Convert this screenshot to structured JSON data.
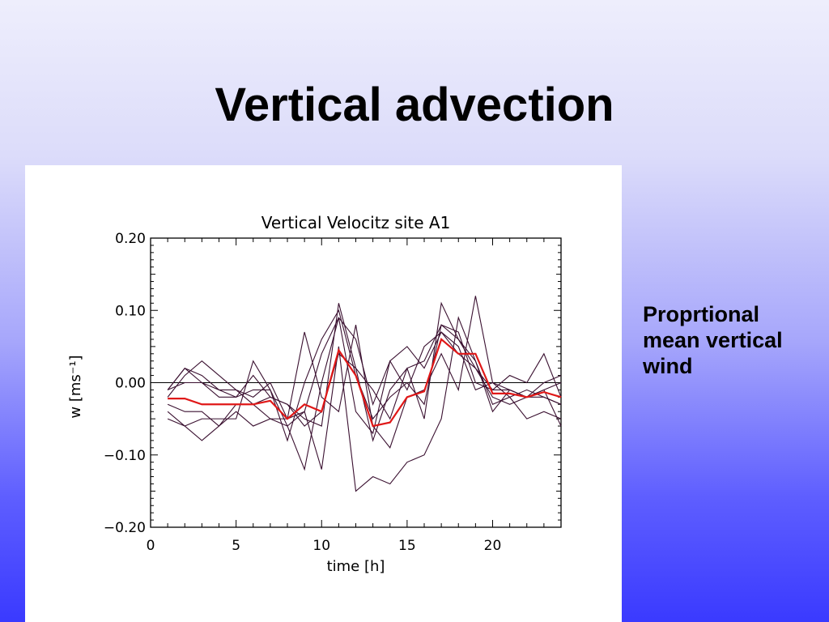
{
  "slide": {
    "title": "Vertical advection",
    "note_lines": [
      "Proprtional",
      "mean vertical",
      "wind"
    ]
  },
  "chart_data": {
    "type": "line",
    "title": "Vertical Velocitz site A1",
    "xlabel": "time [h]",
    "ylabel": "w [ms⁻¹]",
    "xlim": [
      0,
      24
    ],
    "ylim": [
      -0.2,
      0.2
    ],
    "xticks": [
      0,
      5,
      10,
      15,
      20
    ],
    "yticks": [
      0.2,
      0.1,
      0.0,
      -0.1,
      -0.2
    ],
    "ytick_labels": [
      "0.20",
      "0.10",
      "0.00",
      "−0.10",
      "−0.20"
    ],
    "zero_line": 0,
    "colors": {
      "members": "#3a1030",
      "mean": "#e01818"
    },
    "x": [
      1,
      2,
      3,
      4,
      5,
      6,
      7,
      8,
      9,
      10,
      11,
      12,
      13,
      14,
      15,
      16,
      17,
      18,
      19,
      20,
      21,
      22,
      23,
      24
    ],
    "series": [
      {
        "values": [
          -0.01,
          0.02,
          0.01,
          -0.01,
          -0.02,
          0.01,
          -0.02,
          -0.03,
          -0.05,
          -0.06,
          0.11,
          0.02,
          -0.08,
          -0.01,
          0.02,
          -0.05,
          0.11,
          0.06,
          0.03,
          -0.04,
          -0.01,
          -0.02,
          -0.01,
          -0.06
        ]
      },
      {
        "values": [
          -0.04,
          -0.06,
          -0.08,
          -0.06,
          -0.04,
          -0.06,
          -0.05,
          -0.06,
          -0.12,
          0.0,
          0.09,
          -0.04,
          -0.07,
          0.03,
          0.05,
          0.02,
          0.07,
          0.05,
          -0.01,
          0.0,
          -0.02,
          -0.01,
          -0.02,
          -0.03
        ]
      },
      {
        "values": [
          -0.02,
          0.01,
          0.03,
          0.01,
          -0.01,
          -0.03,
          -0.05,
          -0.05,
          0.07,
          -0.02,
          -0.04,
          0.08,
          -0.06,
          -0.09,
          -0.02,
          -0.01,
          0.04,
          -0.01,
          0.12,
          0.0,
          -0.01,
          -0.02,
          0.0,
          0.01
        ]
      },
      {
        "values": [
          -0.01,
          0.02,
          0.0,
          -0.02,
          -0.02,
          -0.01,
          -0.01,
          -0.08,
          0.0,
          0.06,
          0.1,
          0.01,
          -0.05,
          -0.02,
          0.0,
          -0.03,
          0.08,
          0.07,
          0.0,
          -0.01,
          0.01,
          0.0,
          0.04,
          -0.02
        ]
      },
      {
        "values": [
          -0.05,
          -0.06,
          -0.05,
          -0.05,
          -0.05,
          0.03,
          -0.01,
          -0.06,
          -0.04,
          -0.12,
          0.05,
          -0.15,
          -0.13,
          -0.14,
          -0.11,
          -0.1,
          -0.05,
          0.09,
          0.03,
          -0.03,
          -0.02,
          -0.05,
          -0.04,
          -0.05
        ]
      },
      {
        "values": [
          -0.03,
          -0.04,
          -0.04,
          -0.06,
          -0.03,
          -0.03,
          -0.02,
          -0.03,
          -0.06,
          -0.04,
          0.04,
          0.02,
          -0.01,
          -0.05,
          0.02,
          0.03,
          0.08,
          0.06,
          0.02,
          -0.02,
          -0.03,
          -0.02,
          -0.01,
          0.0
        ]
      },
      {
        "values": [
          -0.01,
          0.0,
          0.0,
          -0.01,
          -0.01,
          -0.02,
          0.0,
          -0.05,
          -0.04,
          0.04,
          0.09,
          0.06,
          -0.03,
          0.03,
          -0.01,
          0.05,
          0.07,
          0.04,
          0.02,
          -0.01,
          -0.01,
          -0.02,
          -0.02,
          -0.03
        ]
      },
      {
        "name": "mean",
        "values": [
          -0.022,
          -0.022,
          -0.03,
          -0.03,
          -0.03,
          -0.03,
          -0.025,
          -0.05,
          -0.03,
          -0.04,
          0.045,
          0.01,
          -0.06,
          -0.055,
          -0.02,
          -0.012,
          0.06,
          0.04,
          0.04,
          -0.015,
          -0.015,
          -0.02,
          -0.013,
          -0.02
        ]
      }
    ]
  }
}
